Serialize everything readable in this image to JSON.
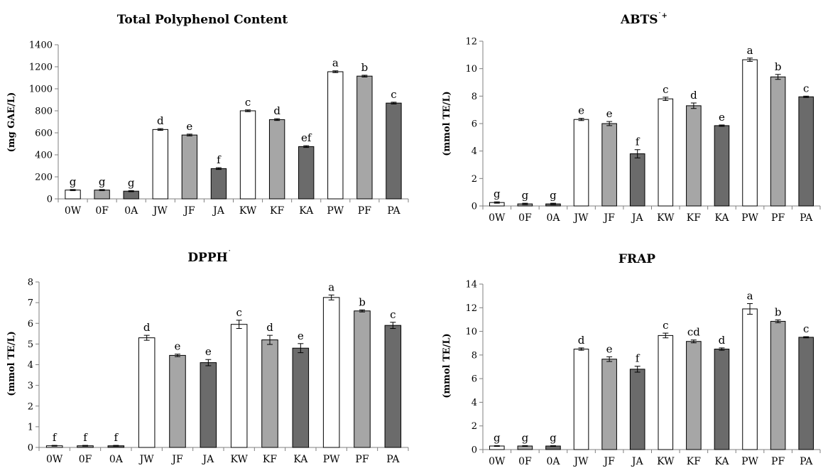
{
  "chart_data": [
    {
      "type": "bar",
      "title": "Total Polyphenol Content",
      "title_sup": "",
      "ylabel": "(mg GAE/L)",
      "ylim": [
        0,
        1400
      ],
      "yticks": [
        0,
        200,
        400,
        600,
        800,
        1000,
        1200,
        1400
      ],
      "categories": [
        "0W",
        "0F",
        "0A",
        "JW",
        "JF",
        "JA",
        "KW",
        "KF",
        "KA",
        "PW",
        "PF",
        "PA"
      ],
      "values": [
        80,
        80,
        70,
        630,
        580,
        275,
        800,
        720,
        475,
        1155,
        1115,
        870
      ],
      "errors": [
        5,
        5,
        5,
        8,
        8,
        8,
        8,
        8,
        8,
        8,
        8,
        8
      ],
      "letters": [
        "g",
        "g",
        "g",
        "d",
        "e",
        "f",
        "c",
        "d",
        "ef",
        "a",
        "b",
        "c"
      ]
    },
    {
      "type": "bar",
      "title": "ABTS",
      "title_sup": "˙+",
      "ylabel": "(mmol TE/L)",
      "ylim": [
        0,
        12
      ],
      "yticks": [
        0,
        2,
        4,
        6,
        8,
        10,
        12
      ],
      "categories": [
        "0W",
        "0F",
        "0A",
        "JW",
        "JF",
        "JA",
        "KW",
        "KF",
        "KA",
        "PW",
        "PF",
        "PA"
      ],
      "values": [
        0.25,
        0.15,
        0.15,
        6.3,
        6.0,
        3.8,
        7.8,
        7.3,
        5.85,
        10.65,
        9.4,
        7.95
      ],
      "errors": [
        0.05,
        0.05,
        0.05,
        0.08,
        0.15,
        0.3,
        0.12,
        0.2,
        0.05,
        0.12,
        0.18,
        0.05
      ],
      "letters": [
        "g",
        "g",
        "g",
        "e",
        "e",
        "f",
        "c",
        "d",
        "e",
        "a",
        "b",
        "c"
      ]
    },
    {
      "type": "bar",
      "title": "DPPH",
      "title_sup": "˙",
      "ylabel": "(mmol TE/L)",
      "ylim": [
        0,
        8
      ],
      "yticks": [
        0,
        1,
        2,
        3,
        4,
        5,
        6,
        7,
        8
      ],
      "categories": [
        "0W",
        "0F",
        "0A",
        "JW",
        "JF",
        "JA",
        "KW",
        "KF",
        "KA",
        "PW",
        "PF",
        "PA"
      ],
      "values": [
        0.08,
        0.08,
        0.08,
        5.3,
        4.45,
        4.1,
        5.95,
        5.2,
        4.8,
        7.25,
        6.6,
        5.9
      ],
      "errors": [
        0.02,
        0.02,
        0.02,
        0.12,
        0.06,
        0.15,
        0.2,
        0.22,
        0.22,
        0.12,
        0.05,
        0.15
      ],
      "letters": [
        "f",
        "f",
        "f",
        "d",
        "e",
        "e",
        "c",
        "d",
        "e",
        "a",
        "b",
        "c"
      ]
    },
    {
      "type": "bar",
      "title": "FRAP",
      "title_sup": "",
      "ylabel": "(mmol TE/L)",
      "ylim": [
        0,
        14
      ],
      "yticks": [
        0,
        2,
        4,
        6,
        8,
        10,
        12,
        14
      ],
      "categories": [
        "0W",
        "0F",
        "0A",
        "JW",
        "JF",
        "JA",
        "KW",
        "KF",
        "KA",
        "PW",
        "PF",
        "PA"
      ],
      "values": [
        0.3,
        0.3,
        0.3,
        8.5,
        7.65,
        6.8,
        9.65,
        9.15,
        8.5,
        11.9,
        10.85,
        9.5
      ],
      "errors": [
        0.03,
        0.03,
        0.03,
        0.1,
        0.2,
        0.25,
        0.2,
        0.12,
        0.1,
        0.45,
        0.12,
        0.05
      ],
      "letters": [
        "g",
        "g",
        "g",
        "d",
        "e",
        "f",
        "c",
        "cd",
        "d",
        "a",
        "b",
        "c"
      ]
    }
  ],
  "colors": {
    "water": "#ffffff",
    "fermented": "#a6a6a6",
    "alcohol": "#6b6b6b",
    "outline": "#000000",
    "axis": "#7f7f7f"
  }
}
